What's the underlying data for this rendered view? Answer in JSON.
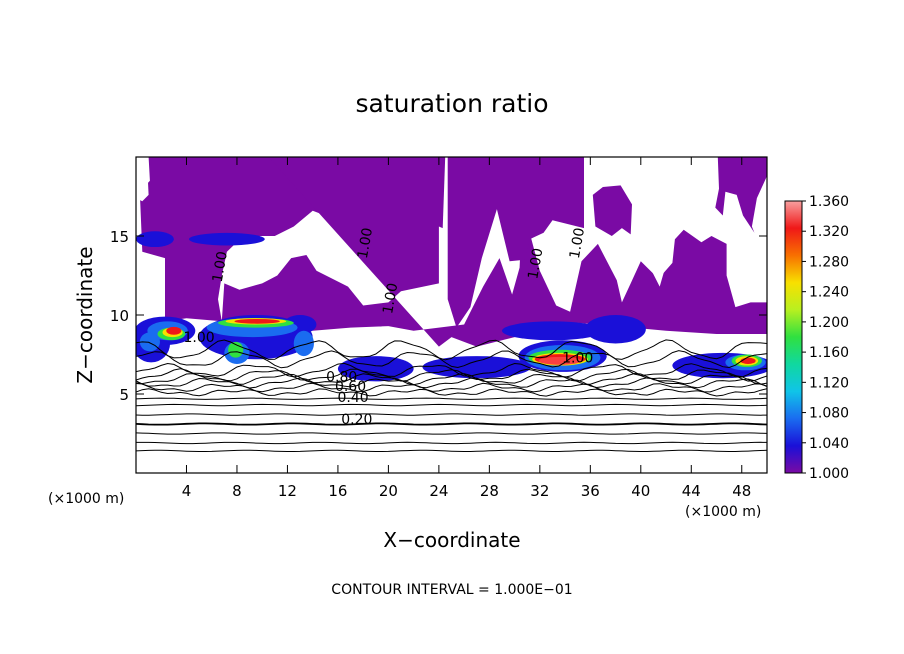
{
  "chart_data": {
    "type": "heatmap",
    "title": "saturation ratio",
    "xlabel": "X−coordinate",
    "ylabel": "Z−coordinate",
    "x_unit": "(×1000 m)",
    "y_unit": "(×1000 m)",
    "footnote": "CONTOUR INTERVAL = 1.000E−01",
    "xlim": [
      0,
      50
    ],
    "ylim": [
      0,
      20
    ],
    "xticks": [
      4,
      8,
      12,
      16,
      20,
      24,
      28,
      32,
      36,
      40,
      44,
      48
    ],
    "xtick_labels": [
      "4",
      "8",
      "12",
      "16",
      "20",
      "24",
      "28",
      "32",
      "36",
      "40",
      "44",
      "48"
    ],
    "yticks": [
      5,
      10,
      15
    ],
    "ytick_labels": [
      "5",
      "10",
      "15"
    ],
    "colorbar": {
      "min": 1.0,
      "max": 1.36,
      "ticks": [
        1.0,
        1.04,
        1.08,
        1.12,
        1.16,
        1.2,
        1.24,
        1.28,
        1.32,
        1.36
      ],
      "tick_labels": [
        "1.000",
        "1.040",
        "1.080",
        "1.120",
        "1.160",
        "1.200",
        "1.240",
        "1.280",
        "1.320",
        "1.360"
      ],
      "colors": [
        "#7a0aa4",
        "#1a10d8",
        "#1a6cf0",
        "#10c4e8",
        "#10d8a0",
        "#30e040",
        "#b8f020",
        "#f8e000",
        "#f87000",
        "#f01818",
        "#f8a0a0"
      ]
    },
    "contour_labels": [
      {
        "text": "0.20",
        "x": 17.5,
        "z": 3.1
      },
      {
        "text": "0.40",
        "x": 17.2,
        "z": 4.5
      },
      {
        "text": "0.60",
        "x": 17.0,
        "z": 5.2
      },
      {
        "text": "0.80",
        "x": 16.3,
        "z": 5.8
      },
      {
        "text": "1.00",
        "x": 7.0,
        "z": 13.0
      },
      {
        "text": "1.00",
        "x": 18.5,
        "z": 14.5
      },
      {
        "text": "1.00",
        "x": 20.5,
        "z": 11.0
      },
      {
        "text": "1.00",
        "x": 32.0,
        "z": 13.2
      },
      {
        "text": "1.00",
        "x": 35.3,
        "z": 14.5
      },
      {
        "text": "1.00",
        "x": 35.0,
        "z": 7.0
      },
      {
        "text": "1.00",
        "x": 5.0,
        "z": 8.3
      }
    ],
    "colors": {
      "cloud_base": "#7a0aa4",
      "subsaturated": "#ffffff",
      "contour": "#000000"
    }
  }
}
